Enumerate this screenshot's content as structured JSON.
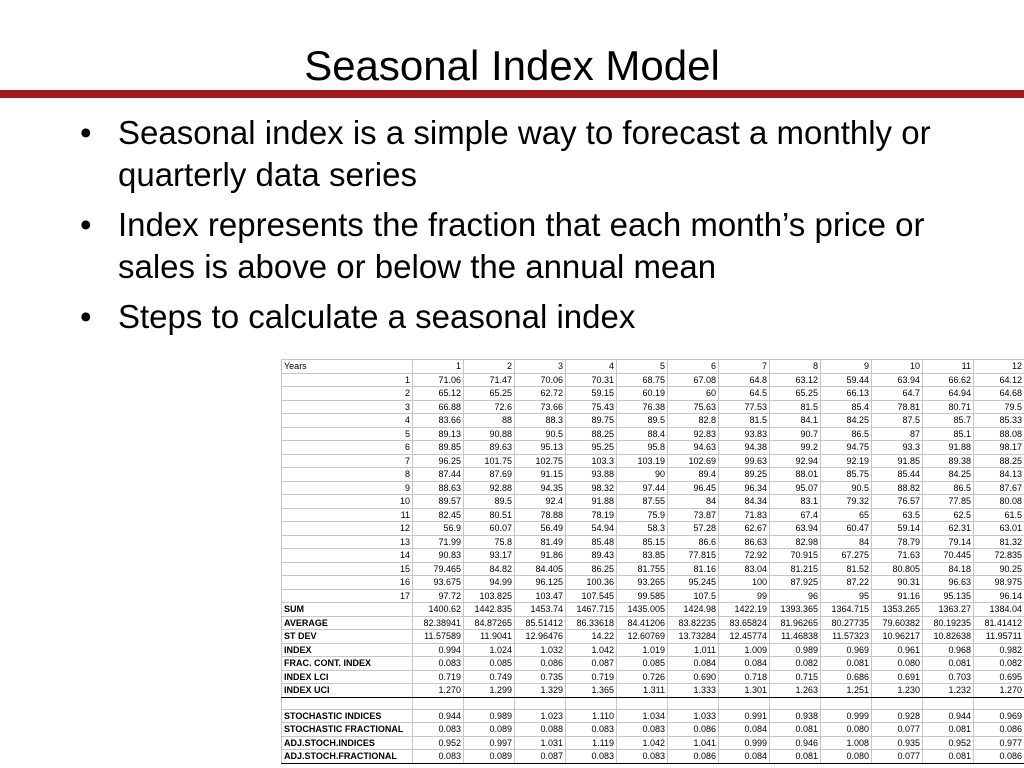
{
  "slide": {
    "title": "Seasonal Index Model",
    "bullets": [
      "Seasonal index is a simple way to forecast a monthly or quarterly data series",
      "Index represents the fraction that each month’s price or sales is above or below the annual mean",
      "Steps to calculate a seasonal index"
    ]
  },
  "accent_color": "#a4191f",
  "sheet": {
    "header": [
      "Years",
      "1",
      "2",
      "3",
      "4",
      "5",
      "6",
      "7",
      "8",
      "9",
      "10",
      "11",
      "12"
    ],
    "data_rows": [
      [
        "1",
        "71.06",
        "71.47",
        "70.06",
        "70.31",
        "68.75",
        "67.08",
        "64.8",
        "63.12",
        "59.44",
        "63.94",
        "66.62",
        "64.12"
      ],
      [
        "2",
        "65.12",
        "65.25",
        "62.72",
        "59.15",
        "60.19",
        "60",
        "64.5",
        "65.25",
        "66.13",
        "64.7",
        "64.94",
        "64.68"
      ],
      [
        "3",
        "66.88",
        "72.6",
        "73.66",
        "75.43",
        "76.38",
        "75.63",
        "77.53",
        "81.5",
        "85.4",
        "78.81",
        "80.71",
        "79.5"
      ],
      [
        "4",
        "83.66",
        "88",
        "88.3",
        "89.75",
        "89.5",
        "82.8",
        "81.5",
        "84.1",
        "84.25",
        "87.5",
        "85.7",
        "85.33"
      ],
      [
        "5",
        "89.13",
        "90.88",
        "90.5",
        "88.25",
        "88.4",
        "92.83",
        "93.83",
        "90.7",
        "86.5",
        "87",
        "85.1",
        "88.08"
      ],
      [
        "6",
        "89.85",
        "89.63",
        "95.13",
        "95.25",
        "95.8",
        "94.63",
        "94.38",
        "99.2",
        "94.75",
        "93.3",
        "91.88",
        "98.17"
      ],
      [
        "7",
        "96.25",
        "101.75",
        "102.75",
        "103.3",
        "103.19",
        "102.69",
        "99.63",
        "92.94",
        "92.19",
        "91.85",
        "89.38",
        "88.25"
      ],
      [
        "8",
        "87.44",
        "87.69",
        "91.15",
        "93.88",
        "90",
        "89.4",
        "89.25",
        "88.01",
        "85.75",
        "85.44",
        "84.25",
        "84.13"
      ],
      [
        "9",
        "88.63",
        "92.88",
        "94.35",
        "98.32",
        "97.44",
        "96.45",
        "96.34",
        "95.07",
        "90.5",
        "88.82",
        "86.5",
        "87.67"
      ],
      [
        "10",
        "89.57",
        "89.5",
        "92.4",
        "91.88",
        "87.55",
        "84",
        "84.34",
        "83.1",
        "79.32",
        "76.57",
        "77.85",
        "80.08"
      ],
      [
        "11",
        "82.45",
        "80.51",
        "78.88",
        "78.19",
        "75.9",
        "73.87",
        "71.83",
        "67.4",
        "65",
        "63.5",
        "62.5",
        "61.5"
      ],
      [
        "12",
        "56.9",
        "60.07",
        "56.49",
        "54.94",
        "58.3",
        "57.28",
        "62.67",
        "63.94",
        "60.47",
        "59.14",
        "62.31",
        "63.01"
      ],
      [
        "13",
        "71.99",
        "75.8",
        "81.49",
        "85.48",
        "85.15",
        "86.6",
        "86.63",
        "82.98",
        "84",
        "78.79",
        "79.14",
        "81.32"
      ],
      [
        "14",
        "90.83",
        "93.17",
        "91.86",
        "89.43",
        "83.85",
        "77.815",
        "72.92",
        "70.915",
        "67.275",
        "71.63",
        "70.445",
        "72.835"
      ],
      [
        "15",
        "79.465",
        "84.82",
        "84.405",
        "86.25",
        "81.755",
        "81.16",
        "83.04",
        "81.215",
        "81.52",
        "80.805",
        "84.18",
        "90.25"
      ],
      [
        "16",
        "93.675",
        "94.99",
        "96.125",
        "100.36",
        "93.265",
        "95.245",
        "100",
        "87.925",
        "87.22",
        "90.31",
        "96.63",
        "98.975"
      ],
      [
        "17",
        "97.72",
        "103.825",
        "103.47",
        "107.545",
        "99.585",
        "107.5",
        "99",
        "96",
        "95",
        "91.16",
        "95.135",
        "96.14"
      ]
    ],
    "summary_rows": [
      [
        "SUM",
        "1400.62",
        "1442.835",
        "1453.74",
        "1467.715",
        "1435.005",
        "1424.98",
        "1422.19",
        "1393.365",
        "1364.715",
        "1353.265",
        "1363.27",
        "1384.04"
      ],
      [
        "AVERAGE",
        "82.38941",
        "84.87265",
        "85.51412",
        "86.33618",
        "84.41206",
        "83.82235",
        "83.65824",
        "81.96265",
        "80.27735",
        "79.60382",
        "80.19235",
        "81.41412"
      ],
      [
        "ST DEV",
        "11.57589",
        "11.9041",
        "12.96476",
        "14.22",
        "12.60769",
        "13.73284",
        "12.45774",
        "11.46838",
        "11.57323",
        "10.96217",
        "10.82638",
        "11.95711"
      ],
      [
        "INDEX",
        "0.994",
        "1.024",
        "1.032",
        "1.042",
        "1.019",
        "1.011",
        "1.009",
        "0.989",
        "0.969",
        "0.961",
        "0.968",
        "0.982"
      ],
      [
        "FRAC. CONT. INDEX",
        "0.083",
        "0.085",
        "0.086",
        "0.087",
        "0.085",
        "0.084",
        "0.084",
        "0.082",
        "0.081",
        "0.080",
        "0.081",
        "0.082"
      ],
      [
        "INDEX LCI",
        "0.719",
        "0.749",
        "0.735",
        "0.719",
        "0.726",
        "0.690",
        "0.718",
        "0.715",
        "0.686",
        "0.691",
        "0.703",
        "0.695"
      ],
      [
        "INDEX UCI",
        "1.270",
        "1.299",
        "1.329",
        "1.365",
        "1.311",
        "1.333",
        "1.301",
        "1.263",
        "1.251",
        "1.230",
        "1.232",
        "1.270"
      ]
    ],
    "stochastic_rows": [
      [
        "STOCHASTIC INDICES",
        "0.944",
        "0.989",
        "1.023",
        "1.110",
        "1.034",
        "1.033",
        "0.991",
        "0.938",
        "0.999",
        "0.928",
        "0.944",
        "0.969"
      ],
      [
        "STOCHASTIC FRACTIONAL",
        "0.083",
        "0.089",
        "0.088",
        "0.083",
        "0.083",
        "0.086",
        "0.084",
        "0.081",
        "0.080",
        "0.077",
        "0.081",
        "0.086"
      ],
      [
        "ADJ.STOCH.INDICES",
        "0.952",
        "0.997",
        "1.031",
        "1.119",
        "1.042",
        "1.041",
        "0.999",
        "0.946",
        "1.008",
        "0.935",
        "0.952",
        "0.977"
      ],
      [
        "ADJ.STOCH.FRACTIONAL",
        "0.083",
        "0.089",
        "0.087",
        "0.083",
        "0.083",
        "0.086",
        "0.084",
        "0.081",
        "0.080",
        "0.077",
        "0.081",
        "0.086"
      ]
    ]
  }
}
